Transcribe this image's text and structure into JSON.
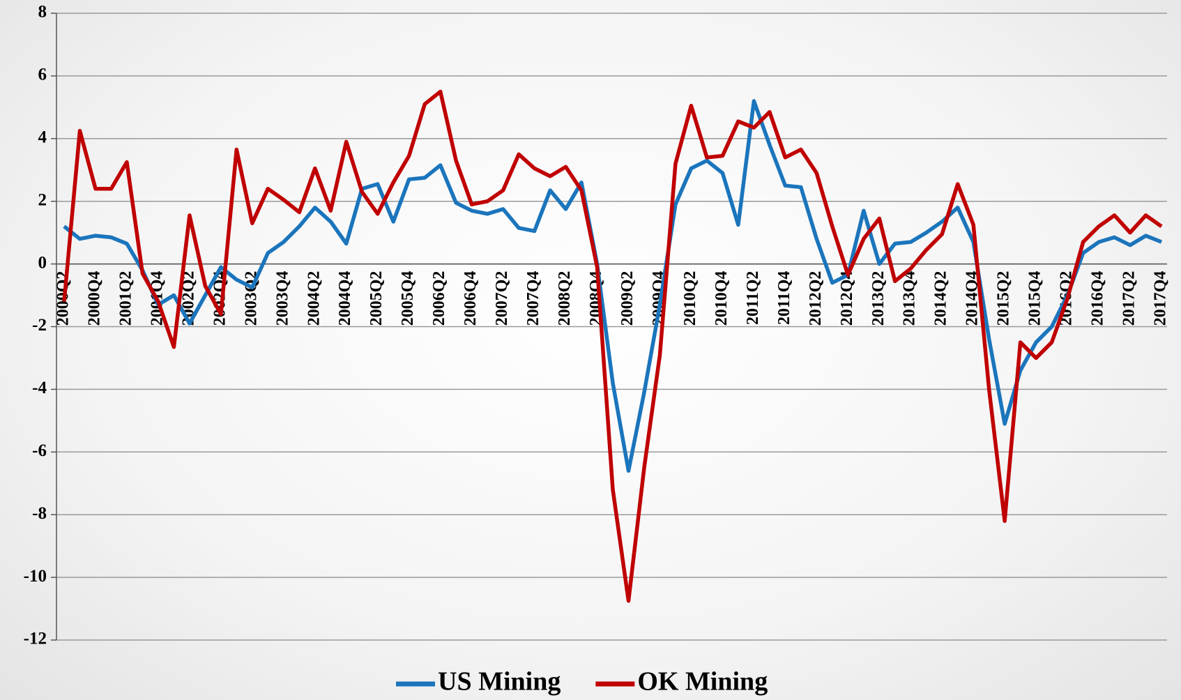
{
  "chart_data": {
    "type": "line",
    "categories": [
      "2000Q2",
      null,
      "2000Q4",
      null,
      "2001Q2",
      null,
      "2001Q4",
      null,
      "2002Q2",
      null,
      "2002Q4",
      null,
      "2003Q2",
      null,
      "2003Q4",
      null,
      "2004Q2",
      null,
      "2004Q4",
      null,
      "2005Q2",
      null,
      "2005Q4",
      null,
      "2006Q2",
      null,
      "2006Q4",
      null,
      "2007Q2",
      null,
      "2007Q4",
      null,
      "2008Q2",
      null,
      "2008Q4",
      null,
      "2009Q2",
      null,
      "2009Q4",
      null,
      "2010Q2",
      null,
      "2010Q4",
      null,
      "2011Q2",
      null,
      "2011Q4",
      null,
      "2012Q2",
      null,
      "2012Q4",
      null,
      "2013Q2",
      null,
      "2013Q4",
      null,
      "2014Q2",
      null,
      "2014Q4",
      null,
      "2015Q2",
      null,
      "2015Q4",
      null,
      "2016Q2",
      null,
      "2016Q4",
      null,
      "2017Q2",
      null,
      "2017Q4"
    ],
    "series": [
      {
        "name": "US Mining",
        "color": "#1b75bc",
        "values": [
          1.2,
          0.8,
          0.9,
          0.85,
          0.65,
          -0.2,
          -1.3,
          -1.0,
          -1.9,
          -1.0,
          -0.1,
          -0.5,
          -0.75,
          0.35,
          0.7,
          1.2,
          1.8,
          1.35,
          0.65,
          2.4,
          2.55,
          1.35,
          2.7,
          2.75,
          3.15,
          1.95,
          1.7,
          1.6,
          1.75,
          1.15,
          1.05,
          2.35,
          1.75,
          2.6,
          0.0,
          -3.8,
          -6.6,
          -4.1,
          -1.3,
          1.9,
          3.05,
          3.3,
          2.9,
          1.25,
          5.2,
          3.8,
          2.5,
          2.45,
          0.8,
          -0.6,
          -0.35,
          1.7,
          0.0,
          0.65,
          0.7,
          1.0,
          1.35,
          1.8,
          0.7,
          -2.4,
          -5.1,
          -3.4,
          -2.5,
          -2.0,
          -1.0,
          0.35,
          0.7,
          0.85,
          0.6,
          0.9,
          0.7
        ]
      },
      {
        "name": "OK Mining",
        "color": "#c00000",
        "values": [
          -1.2,
          4.25,
          2.4,
          2.4,
          3.25,
          -0.3,
          -1.2,
          -2.65,
          1.55,
          -0.7,
          -1.6,
          3.65,
          1.3,
          2.4,
          2.05,
          1.65,
          3.05,
          1.7,
          3.9,
          2.3,
          1.6,
          2.6,
          3.45,
          5.1,
          5.5,
          3.3,
          1.9,
          2.0,
          2.35,
          3.5,
          3.05,
          2.8,
          3.1,
          2.35,
          -0.1,
          -7.2,
          -10.75,
          -6.5,
          -2.9,
          3.2,
          5.05,
          3.4,
          3.45,
          4.55,
          4.35,
          4.85,
          3.4,
          3.65,
          2.9,
          1.2,
          -0.35,
          0.8,
          1.45,
          -0.55,
          -0.15,
          0.45,
          0.95,
          2.55,
          1.25,
          -4.0,
          -8.2,
          -2.5,
          -3.0,
          -2.5,
          -1.1,
          0.7,
          1.2,
          1.55,
          1.0,
          1.55,
          1.2
        ]
      }
    ],
    "ylim": [
      -12,
      8
    ],
    "yticks": [
      -12,
      -10,
      -8,
      -6,
      -4,
      -2,
      0,
      2,
      4,
      6,
      8
    ],
    "grid": true,
    "legend": "bottom"
  }
}
